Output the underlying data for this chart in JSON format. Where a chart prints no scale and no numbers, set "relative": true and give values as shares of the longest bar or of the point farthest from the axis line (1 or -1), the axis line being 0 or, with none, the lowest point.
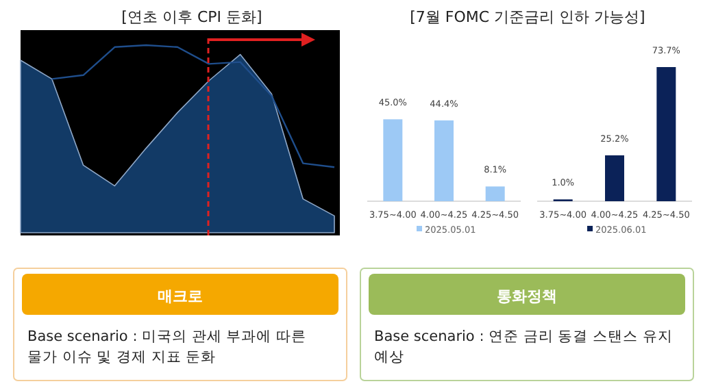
{
  "chart_data": [
    {
      "type": "area",
      "title": "[연초 이후 CPI 둔화]",
      "relative": true,
      "categories": [
        null,
        null,
        null,
        null,
        null,
        null,
        null,
        null,
        null,
        null,
        null
      ],
      "series": [
        {
          "type": "area",
          "color": "#123a66",
          "values": [
            0.92,
            0.82,
            0.36,
            0.25,
            0.45,
            0.64,
            0.81,
            0.95,
            0.74,
            0.18,
            0.09
          ]
        },
        {
          "type": "line",
          "color": "#1f4e8c",
          "values": [
            null,
            0.82,
            0.84,
            0.99,
            1,
            0.99,
            0.9,
            0.91,
            0.73,
            0.37,
            0.35
          ]
        }
      ]
    },
    {
      "type": "bar",
      "title": "[7월 FOMC 기준금리 인하 가능성]",
      "categories": [
        "3.75~4.00",
        "4.00~4.25",
        "4.25~4.50"
      ],
      "legend": "bottom",
      "series": [
        {
          "name": "2025.05.01",
          "color": "#9dc9f5",
          "values": [
            45.0,
            44.4,
            8.1
          ],
          "value_labels": [
            "45.0%",
            "44.4%",
            "8.1%"
          ]
        }
      ]
    },
    {
      "type": "bar",
      "categories": [
        "3.75~4.00",
        "4.00~4.25",
        "4.25~4.50"
      ],
      "legend": "bottom",
      "series": [
        {
          "name": "2025.06.01",
          "color": "#0b2258",
          "values": [
            1.0,
            25.2,
            73.7
          ],
          "value_labels": [
            "1.0%",
            "25.2%",
            "73.7%"
          ]
        }
      ]
    },
    {
      "type": "other",
      "title": "매크로",
      "annotations": [
        "Base scenario : 미국의 관세 부과에 따른",
        "물가 이슈 및 경제 지표 둔화"
      ],
      "colors": [
        "#f5a800",
        "#f5cf9c"
      ]
    },
    {
      "type": "other",
      "title": "통화정책",
      "annotations": [
        "Base scenario : 연준 금리 동결 스탠스 유지",
        "예상"
      ],
      "colors": [
        "#9bbb59",
        "#b9d39a"
      ]
    }
  ]
}
